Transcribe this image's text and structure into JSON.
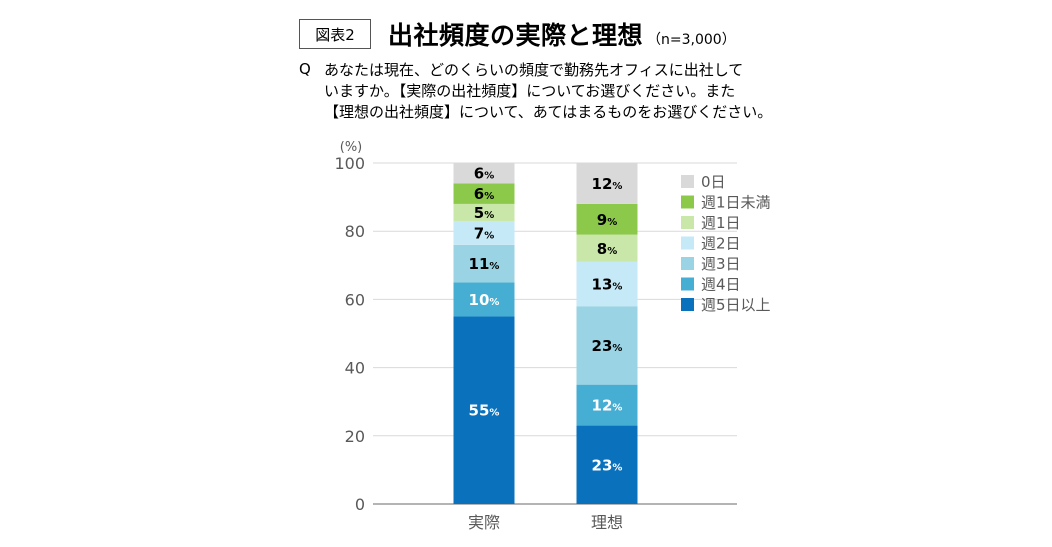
{
  "figure_label": "図表2",
  "title": "出社頻度の実際と理想",
  "subtitle": "（n=3,000）",
  "question": {
    "mark": "Q",
    "lines": [
      "あなたは現在、どのくらいの頻度で勤務先オフィスに出社して",
      "いますか。【実際の出社頻度】についてお選びください。また",
      "【理想の出社頻度】について、あてはまるものをお選びください。"
    ]
  },
  "chart_data": {
    "type": "bar",
    "stacked": true,
    "ylabel": "(%)",
    "ylim": [
      0,
      100
    ],
    "yticks": [
      0,
      20,
      40,
      60,
      80,
      100
    ],
    "grid": true,
    "legend_position": "right",
    "value_suffix": "%",
    "categories": [
      "実際",
      "理想"
    ],
    "series": [
      {
        "name": "週5日以上",
        "color": "#0a72bd",
        "label_color": "#ffffff",
        "values": [
          55,
          23
        ]
      },
      {
        "name": "週4日",
        "color": "#45aed2",
        "label_color": "#ffffff",
        "values": [
          10,
          12
        ]
      },
      {
        "name": "週3日",
        "color": "#9ad3e3",
        "label_color": "#000000",
        "values": [
          11,
          23
        ]
      },
      {
        "name": "週2日",
        "color": "#c6e9f7",
        "label_color": "#000000",
        "values": [
          7,
          13
        ]
      },
      {
        "name": "週1日",
        "color": "#c9e7a8",
        "label_color": "#000000",
        "values": [
          5,
          8
        ]
      },
      {
        "name": "週1日未満",
        "color": "#8cc94a",
        "label_color": "#000000",
        "values": [
          6,
          9
        ]
      },
      {
        "name": "0日",
        "color": "#d9d9d9",
        "label_color": "#000000",
        "values": [
          6,
          12
        ]
      }
    ]
  }
}
